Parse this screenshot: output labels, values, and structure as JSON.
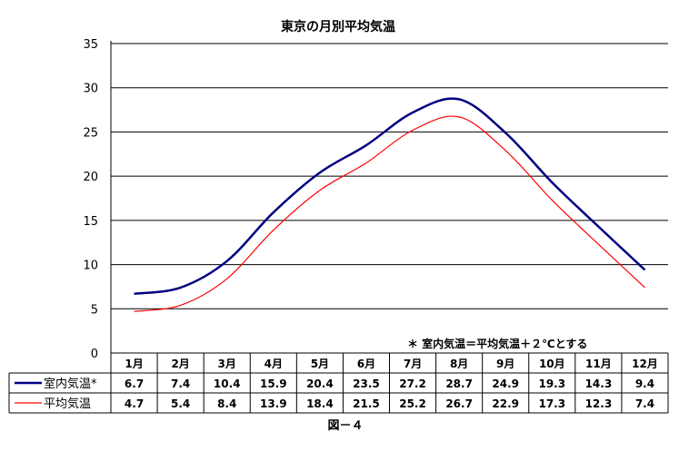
{
  "chart_data": {
    "type": "line",
    "title": "東京の月別平均気温",
    "caption": "図－４",
    "note": "＊ 室内気温＝平均気温＋２℃とする",
    "categories": [
      "1月",
      "2月",
      "3月",
      "4月",
      "5月",
      "6月",
      "7月",
      "8月",
      "9月",
      "10月",
      "11月",
      "12月"
    ],
    "ylim": [
      0,
      35
    ],
    "yticks": [
      "0",
      "5",
      "10",
      "15",
      "20",
      "25",
      "30",
      "35"
    ],
    "grid": true,
    "legend": "data-table",
    "series": [
      {
        "name": "室内気温*",
        "color": "#000080",
        "values": [
          6.7,
          7.4,
          10.4,
          15.9,
          20.4,
          23.5,
          27.2,
          28.7,
          24.9,
          19.3,
          14.3,
          9.4
        ],
        "labels": [
          "6.7",
          "7.4",
          "10.4",
          "15.9",
          "20.4",
          "23.5",
          "27.2",
          "28.7",
          "24.9",
          "19.3",
          "14.3",
          "9.4"
        ]
      },
      {
        "name": "平均気温",
        "color": "#ff0000",
        "values": [
          4.7,
          5.4,
          8.4,
          13.9,
          18.4,
          21.5,
          25.2,
          26.7,
          22.9,
          17.3,
          12.3,
          7.4
        ],
        "labels": [
          "4.7",
          "5.4",
          "8.4",
          "13.9",
          "18.4",
          "21.5",
          "25.2",
          "26.7",
          "22.9",
          "17.3",
          "12.3",
          "7.4"
        ]
      }
    ]
  }
}
